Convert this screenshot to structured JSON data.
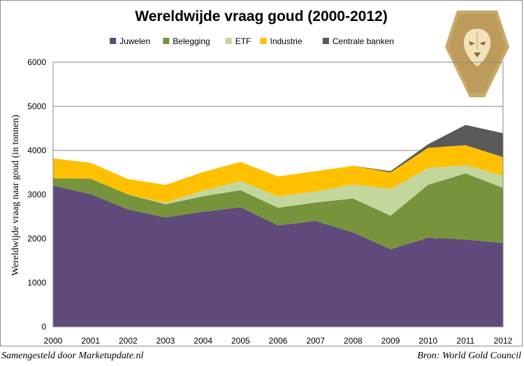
{
  "chart_data": {
    "type": "area",
    "stacked": true,
    "title": "Wereldwijde vraag goud (2000-2012)",
    "ylabel": "Wereldwijde vraag naar goud (in tonnen)",
    "xlabel": "",
    "x": [
      "2000",
      "2001",
      "2002",
      "2003",
      "2004",
      "2005",
      "2006",
      "2007",
      "2008",
      "2009",
      "2010",
      "2011",
      "2012"
    ],
    "ylim": [
      0,
      6000
    ],
    "yticks": [
      0,
      1000,
      2000,
      3000,
      4000,
      5000,
      6000
    ],
    "grid": true,
    "legend_position": "top",
    "series": [
      {
        "name": "Juwelen",
        "color": "#604a7b",
        "values": [
          3200,
          3010,
          2660,
          2480,
          2610,
          2710,
          2300,
          2400,
          2140,
          1760,
          2020,
          1980,
          1900
        ]
      },
      {
        "name": "Belegging",
        "color": "#77933c",
        "values": [
          170,
          350,
          340,
          300,
          350,
          390,
          400,
          420,
          770,
          760,
          1200,
          1500,
          1250
        ]
      },
      {
        "name": "ETF",
        "color": "#c3d69b",
        "values": [
          0,
          0,
          0,
          40,
          130,
          210,
          260,
          250,
          320,
          610,
          380,
          190,
          280
        ]
      },
      {
        "name": "Industrie",
        "color": "#ffc000",
        "values": [
          450,
          360,
          350,
          400,
          420,
          430,
          450,
          460,
          420,
          370,
          460,
          450,
          420
        ]
      },
      {
        "name": "Centrale banken",
        "color": "#595959",
        "values": [
          0,
          0,
          0,
          0,
          0,
          0,
          0,
          0,
          0,
          30,
          80,
          460,
          540
        ]
      }
    ]
  },
  "source": {
    "left_text": "Samengesteld door Marketupdate.nl",
    "right_text": "Bron: World Gold Council"
  },
  "logo": {
    "icon": "lion-shield-icon",
    "color": "#c9a96a"
  }
}
